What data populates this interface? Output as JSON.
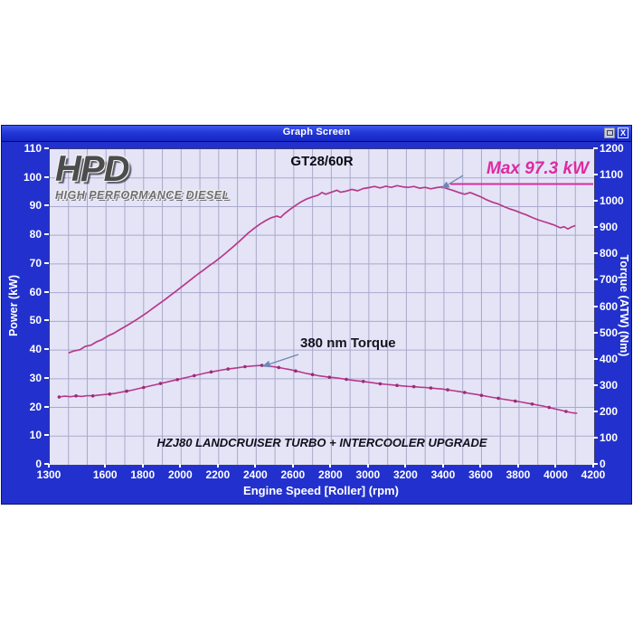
{
  "window": {
    "title": "Graph Screen",
    "buttons": {
      "close_label": "X"
    }
  },
  "logo": {
    "main": "HPD",
    "sub": "HIGH PERFORMANCE DIESEL"
  },
  "colors": {
    "window_blue": "#2231cd",
    "plot_background": "#e4e4f6",
    "grid": "#a9a9cc",
    "curve": "#b8388a",
    "marker": "#9c2a78",
    "annotation_pink": "#dd2aa2",
    "arrow": "#6e87b4"
  },
  "chart_data": {
    "type": "line",
    "title": "GT28/60R",
    "footnote": "HZJ80 LANDCRUISER TURBO + INTERCOOLER UPGRADE",
    "grid": {
      "vertical_every_rpm": 100,
      "horizontal_every_kw": 10
    },
    "x_axis": {
      "label": "Engine Speed [Roller] (rpm)",
      "min": 1300,
      "max": 4200,
      "tick_labels": [
        "1300",
        "1600",
        "1800",
        "2000",
        "2200",
        "2400",
        "2600",
        "2800",
        "3000",
        "3200",
        "3400",
        "3600",
        "3800",
        "4000",
        "4200"
      ]
    },
    "y_axis_left": {
      "label": "Power (kW)",
      "min": 0,
      "max": 110,
      "step": 10,
      "tick_labels": [
        "110",
        "100",
        "90",
        "80",
        "70",
        "60",
        "50",
        "40",
        "30",
        "20",
        "10",
        "0"
      ]
    },
    "y_axis_right": {
      "label": "Torque (ATW) (Nm)",
      "min": 0,
      "max": 1200,
      "step": 100,
      "tick_labels": [
        "1200",
        "1100",
        "1000",
        "900",
        "800",
        "700",
        "600",
        "500",
        "400",
        "300",
        "200",
        "100",
        "0"
      ]
    },
    "annotations": [
      {
        "text": "Max 97.3 kW",
        "series": "Power"
      },
      {
        "text": "380 nm Torque",
        "series": "Torque"
      }
    ],
    "series": [
      {
        "name": "Power",
        "unit": "kW",
        "axis": "left",
        "max_value": 97.3,
        "points": [
          [
            1400,
            39.0
          ],
          [
            1430,
            39.7
          ],
          [
            1460,
            40.1
          ],
          [
            1490,
            41.3
          ],
          [
            1520,
            41.7
          ],
          [
            1550,
            42.9
          ],
          [
            1580,
            43.7
          ],
          [
            1610,
            44.9
          ],
          [
            1640,
            45.8
          ],
          [
            1670,
            47.0
          ],
          [
            1700,
            48.1
          ],
          [
            1730,
            49.3
          ],
          [
            1760,
            50.5
          ],
          [
            1790,
            51.8
          ],
          [
            1820,
            53.1
          ],
          [
            1850,
            54.6
          ],
          [
            1880,
            56.0
          ],
          [
            1910,
            57.4
          ],
          [
            1940,
            58.9
          ],
          [
            1970,
            60.4
          ],
          [
            2000,
            61.9
          ],
          [
            2030,
            63.4
          ],
          [
            2060,
            65.0
          ],
          [
            2090,
            66.5
          ],
          [
            2120,
            67.9
          ],
          [
            2150,
            69.4
          ],
          [
            2180,
            70.8
          ],
          [
            2210,
            72.3
          ],
          [
            2240,
            73.9
          ],
          [
            2270,
            75.6
          ],
          [
            2300,
            77.3
          ],
          [
            2330,
            79.1
          ],
          [
            2360,
            80.9
          ],
          [
            2390,
            82.5
          ],
          [
            2420,
            83.9
          ],
          [
            2450,
            85.1
          ],
          [
            2480,
            86.1
          ],
          [
            2510,
            86.7
          ],
          [
            2530,
            86.2
          ],
          [
            2550,
            87.5
          ],
          [
            2580,
            89.0
          ],
          [
            2610,
            90.4
          ],
          [
            2640,
            91.7
          ],
          [
            2670,
            92.7
          ],
          [
            2700,
            93.4
          ],
          [
            2730,
            94.0
          ],
          [
            2750,
            94.9
          ],
          [
            2770,
            94.3
          ],
          [
            2800,
            95.0
          ],
          [
            2830,
            95.7
          ],
          [
            2850,
            95.0
          ],
          [
            2880,
            95.4
          ],
          [
            2910,
            96.0
          ],
          [
            2940,
            95.5
          ],
          [
            2970,
            96.3
          ],
          [
            3000,
            96.6
          ],
          [
            3030,
            97.0
          ],
          [
            3060,
            96.5
          ],
          [
            3090,
            97.1
          ],
          [
            3120,
            96.7
          ],
          [
            3150,
            97.3
          ],
          [
            3180,
            96.9
          ],
          [
            3210,
            96.7
          ],
          [
            3240,
            97.0
          ],
          [
            3270,
            96.4
          ],
          [
            3300,
            96.7
          ],
          [
            3330,
            96.2
          ],
          [
            3360,
            96.6
          ],
          [
            3390,
            96.9
          ],
          [
            3420,
            96.2
          ],
          [
            3450,
            95.6
          ],
          [
            3480,
            94.9
          ],
          [
            3510,
            94.3
          ],
          [
            3540,
            94.9
          ],
          [
            3570,
            94.1
          ],
          [
            3600,
            93.3
          ],
          [
            3630,
            92.3
          ],
          [
            3660,
            91.5
          ],
          [
            3690,
            90.9
          ],
          [
            3720,
            90.0
          ],
          [
            3750,
            89.2
          ],
          [
            3780,
            88.6
          ],
          [
            3810,
            87.8
          ],
          [
            3840,
            87.1
          ],
          [
            3870,
            86.2
          ],
          [
            3900,
            85.4
          ],
          [
            3930,
            84.8
          ],
          [
            3960,
            84.2
          ],
          [
            3990,
            83.5
          ],
          [
            4020,
            82.6
          ],
          [
            4040,
            83.0
          ],
          [
            4060,
            82.2
          ],
          [
            4080,
            82.9
          ],
          [
            4100,
            83.4
          ]
        ]
      },
      {
        "name": "Torque",
        "unit": "Nm",
        "axis": "right",
        "max_value": 380,
        "points": [
          [
            1350,
            258
          ],
          [
            1380,
            261
          ],
          [
            1410,
            259
          ],
          [
            1440,
            262
          ],
          [
            1470,
            260
          ],
          [
            1500,
            263
          ],
          [
            1530,
            262
          ],
          [
            1560,
            265
          ],
          [
            1590,
            267
          ],
          [
            1620,
            269
          ],
          [
            1650,
            272
          ],
          [
            1680,
            276
          ],
          [
            1710,
            280
          ],
          [
            1740,
            284
          ],
          [
            1770,
            289
          ],
          [
            1800,
            294
          ],
          [
            1830,
            299
          ],
          [
            1860,
            304
          ],
          [
            1890,
            309
          ],
          [
            1920,
            314
          ],
          [
            1950,
            319
          ],
          [
            1980,
            324
          ],
          [
            2010,
            329
          ],
          [
            2040,
            334
          ],
          [
            2070,
            339
          ],
          [
            2100,
            344
          ],
          [
            2130,
            349
          ],
          [
            2160,
            353
          ],
          [
            2190,
            357
          ],
          [
            2220,
            361
          ],
          [
            2250,
            364
          ],
          [
            2280,
            367
          ],
          [
            2310,
            370
          ],
          [
            2340,
            373
          ],
          [
            2370,
            375
          ],
          [
            2400,
            377
          ],
          [
            2430,
            378
          ],
          [
            2460,
            376
          ],
          [
            2490,
            373
          ],
          [
            2520,
            370
          ],
          [
            2550,
            366
          ],
          [
            2580,
            362
          ],
          [
            2610,
            357
          ],
          [
            2640,
            352
          ],
          [
            2670,
            347
          ],
          [
            2700,
            343
          ],
          [
            2730,
            339
          ],
          [
            2760,
            336
          ],
          [
            2790,
            333
          ],
          [
            2820,
            331
          ],
          [
            2850,
            328
          ],
          [
            2880,
            325
          ],
          [
            2910,
            322
          ],
          [
            2940,
            319
          ],
          [
            2970,
            317
          ],
          [
            3000,
            314
          ],
          [
            3030,
            311
          ],
          [
            3060,
            308
          ],
          [
            3090,
            306
          ],
          [
            3120,
            304
          ],
          [
            3150,
            302
          ],
          [
            3180,
            300
          ],
          [
            3210,
            298
          ],
          [
            3240,
            297
          ],
          [
            3270,
            295
          ],
          [
            3300,
            294
          ],
          [
            3330,
            292
          ],
          [
            3360,
            290
          ],
          [
            3390,
            288
          ],
          [
            3420,
            285
          ],
          [
            3450,
            282
          ],
          [
            3480,
            279
          ],
          [
            3510,
            275
          ],
          [
            3540,
            271
          ],
          [
            3570,
            268
          ],
          [
            3600,
            264
          ],
          [
            3630,
            260
          ],
          [
            3660,
            256
          ],
          [
            3690,
            253
          ],
          [
            3720,
            249
          ],
          [
            3750,
            246
          ],
          [
            3780,
            242
          ],
          [
            3810,
            239
          ],
          [
            3840,
            235
          ],
          [
            3870,
            231
          ],
          [
            3900,
            227
          ],
          [
            3930,
            223
          ],
          [
            3960,
            218
          ],
          [
            3990,
            213
          ],
          [
            4020,
            208
          ],
          [
            4050,
            203
          ],
          [
            4080,
            198
          ],
          [
            4110,
            196
          ]
        ]
      }
    ]
  }
}
